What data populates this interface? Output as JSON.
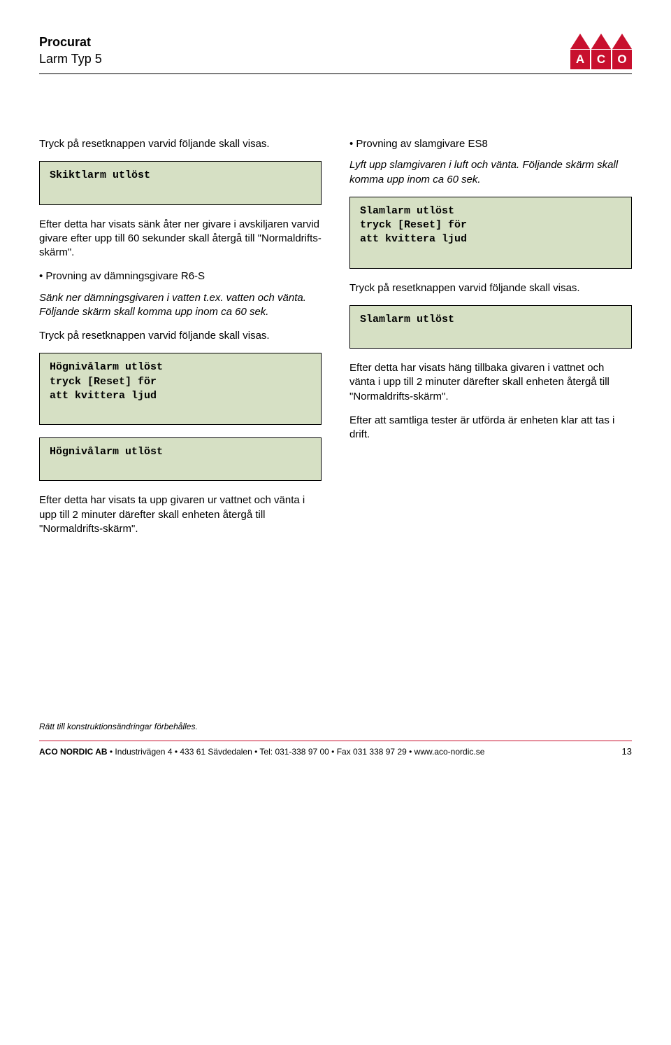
{
  "header": {
    "title": "Procurat",
    "subtitle": "Larm Typ 5",
    "logo": {
      "letters": [
        "A",
        "C",
        "O"
      ],
      "color": "#c8102e"
    }
  },
  "left": {
    "p1": "Tryck på resetknappen varvid följande skall visas.",
    "box1": "Skiktlarm utlöst",
    "p2": "Efter detta har visats sänk åter ner givare i avskiljaren varvid givare efter upp till 60 sekunder skall återgå till \"Normaldrifts-skärm\".",
    "b1": "• Provning av dämningsgivare R6-S",
    "p3": "Sänk ner dämningsgivaren i vatten t.ex. vatten och vänta. Följande skärm skall komma upp inom ca 60 sek.",
    "p4": "Tryck på resetknappen varvid följande skall visas.",
    "box2": "Högnivålarm utlöst\ntryck [Reset] för\natt kvittera ljud",
    "box3": "Högnivålarm utlöst",
    "p5": "Efter detta har visats ta upp givaren ur vattnet och vänta i upp till 2 minuter därefter skall enheten återgå till \"Normaldrifts-skärm\"."
  },
  "right": {
    "b1": "• Provning av slamgivare ES8",
    "p1": "Lyft upp slamgivaren i luft och vänta. Följande skärm skall komma upp inom ca 60 sek.",
    "box1": "Slamlarm utlöst\ntryck [Reset] för\natt kvittera ljud",
    "p2": "Tryck på resetknappen varvid följande skall visas.",
    "box2": "Slamlarm utlöst",
    "p3": "Efter detta har visats häng tillbaka givaren i vattnet och vänta i upp till 2 minuter därefter skall enheten återgå till \"Normaldrifts-skärm\".",
    "p4": "Efter att samtliga tester är utförda är enheten klar att tas i drift."
  },
  "footer": {
    "note": "Rätt till konstruktionsändringar förbehålles.",
    "company": "ACO NORDIC AB",
    "details": " • Industrivägen 4 • 433 61 Sävdedalen • Tel: 031-338 97 00 • Fax 031 338 97 29 • www.aco-nordic.se",
    "page": "13"
  },
  "colors": {
    "screen_bg": "#d6e0c4",
    "accent": "#c8102e"
  }
}
